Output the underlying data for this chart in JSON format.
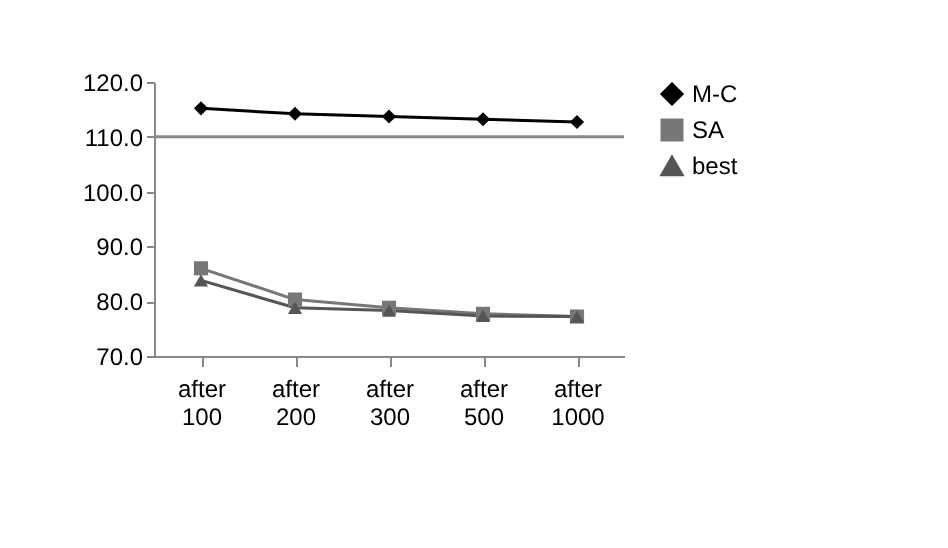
{
  "chart_data": {
    "type": "line",
    "categories": [
      "after 100",
      "after 200",
      "after 300",
      "after 500",
      "after 1000"
    ],
    "series": [
      {
        "name": "M-C",
        "color": "#000000",
        "marker": "diamond",
        "values": [
          115.2,
          114.2,
          113.7,
          113.2,
          112.7
        ]
      },
      {
        "name": "SA",
        "color": "#777777",
        "marker": "square",
        "values": [
          86.0,
          80.3,
          78.8,
          77.7,
          77.2
        ]
      },
      {
        "name": "best",
        "color": "#555555",
        "marker": "triangle",
        "values": [
          83.8,
          78.8,
          78.3,
          77.3,
          77.2
        ]
      }
    ],
    "ylim": [
      70,
      120
    ],
    "yticks": [
      {
        "value": 70,
        "label": "70.0"
      },
      {
        "value": 80,
        "label": "80.0"
      },
      {
        "value": 90,
        "label": "90.0"
      },
      {
        "value": 100,
        "label": "100.0"
      },
      {
        "value": 110,
        "label": "110.0"
      },
      {
        "value": 120,
        "label": "120.0"
      }
    ],
    "ref_lines": [
      {
        "axis": "y",
        "value": 110,
        "label": null,
        "color": "#888888"
      }
    ],
    "grid": false,
    "legend": "right",
    "line_style": "solid"
  }
}
